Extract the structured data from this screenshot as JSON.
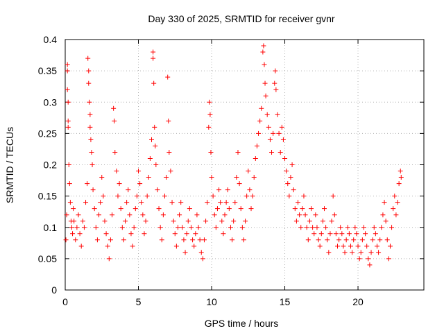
{
  "chart_data": {
    "type": "scatter",
    "title": "Day 330 of 2025, SRMTID for receiver gvnr",
    "xlabel": "GPS time / hours",
    "ylabel": "SRMTID / TECUs",
    "xlim": [
      0,
      24.5
    ],
    "ylim": [
      0,
      0.4
    ],
    "x_ticks": [
      0,
      5,
      10,
      15,
      20
    ],
    "y_ticks": [
      0,
      0.05,
      0.1,
      0.15,
      0.2,
      0.25,
      0.3,
      0.35,
      0.4
    ],
    "x_tick_labels": [
      "0",
      "5",
      "10",
      "15",
      "20"
    ],
    "y_tick_labels": [
      "0",
      "0.05",
      "0.1",
      "0.15",
      "0.2",
      "0.25",
      "0.3",
      "0.35",
      "0.4"
    ],
    "grid": true,
    "marker": "plus",
    "color": "#ff0000",
    "series": [
      {
        "name": "SRMTID",
        "points": [
          [
            0.05,
            0.08
          ],
          [
            0.1,
            0.12
          ],
          [
            0.15,
            0.36
          ],
          [
            0.15,
            0.35
          ],
          [
            0.15,
            0.32
          ],
          [
            0.2,
            0.3
          ],
          [
            0.2,
            0.27
          ],
          [
            0.2,
            0.26
          ],
          [
            0.25,
            0.2
          ],
          [
            0.3,
            0.17
          ],
          [
            0.35,
            0.14
          ],
          [
            0.4,
            0.11
          ],
          [
            0.45,
            0.1
          ],
          [
            0.5,
            0.09
          ],
          [
            0.55,
            0.13
          ],
          [
            0.6,
            0.11
          ],
          [
            0.7,
            0.08
          ],
          [
            0.8,
            0.1
          ],
          [
            0.9,
            0.12
          ],
          [
            1.0,
            0.09
          ],
          [
            1.1,
            0.07
          ],
          [
            1.2,
            0.11
          ],
          [
            1.3,
            0.1
          ],
          [
            1.4,
            0.14
          ],
          [
            1.5,
            0.17
          ],
          [
            1.55,
            0.37
          ],
          [
            1.6,
            0.35
          ],
          [
            1.6,
            0.33
          ],
          [
            1.65,
            0.3
          ],
          [
            1.7,
            0.28
          ],
          [
            1.7,
            0.26
          ],
          [
            1.75,
            0.24
          ],
          [
            1.8,
            0.22
          ],
          [
            1.85,
            0.2
          ],
          [
            1.9,
            0.16
          ],
          [
            2.0,
            0.13
          ],
          [
            2.1,
            0.1
          ],
          [
            2.2,
            0.08
          ],
          [
            2.3,
            0.12
          ],
          [
            2.4,
            0.14
          ],
          [
            2.5,
            0.18
          ],
          [
            2.6,
            0.15
          ],
          [
            2.7,
            0.11
          ],
          [
            2.8,
            0.09
          ],
          [
            2.9,
            0.07
          ],
          [
            3.0,
            0.05
          ],
          [
            3.1,
            0.08
          ],
          [
            3.2,
            0.12
          ],
          [
            3.3,
            0.29
          ],
          [
            3.35,
            0.27
          ],
          [
            3.4,
            0.22
          ],
          [
            3.5,
            0.19
          ],
          [
            3.6,
            0.15
          ],
          [
            3.7,
            0.17
          ],
          [
            3.8,
            0.13
          ],
          [
            3.9,
            0.1
          ],
          [
            4.0,
            0.08
          ],
          [
            4.1,
            0.11
          ],
          [
            4.2,
            0.14
          ],
          [
            4.3,
            0.16
          ],
          [
            4.4,
            0.12
          ],
          [
            4.5,
            0.09
          ],
          [
            4.6,
            0.07
          ],
          [
            4.7,
            0.1
          ],
          [
            4.8,
            0.13
          ],
          [
            4.9,
            0.15
          ],
          [
            5.0,
            0.19
          ],
          [
            5.1,
            0.17
          ],
          [
            5.2,
            0.14
          ],
          [
            5.3,
            0.12
          ],
          [
            5.4,
            0.09
          ],
          [
            5.5,
            0.11
          ],
          [
            5.6,
            0.15
          ],
          [
            5.7,
            0.18
          ],
          [
            5.8,
            0.21
          ],
          [
            5.9,
            0.24
          ],
          [
            6.0,
            0.38
          ],
          [
            6.0,
            0.37
          ],
          [
            6.05,
            0.33
          ],
          [
            6.1,
            0.26
          ],
          [
            6.15,
            0.23
          ],
          [
            6.2,
            0.2
          ],
          [
            6.3,
            0.16
          ],
          [
            6.4,
            0.13
          ],
          [
            6.5,
            0.1
          ],
          [
            6.6,
            0.08
          ],
          [
            6.7,
            0.12
          ],
          [
            6.8,
            0.15
          ],
          [
            6.9,
            0.18
          ],
          [
            7.0,
            0.34
          ],
          [
            7.05,
            0.27
          ],
          [
            7.1,
            0.22
          ],
          [
            7.2,
            0.19
          ],
          [
            7.3,
            0.14
          ],
          [
            7.4,
            0.11
          ],
          [
            7.5,
            0.09
          ],
          [
            7.6,
            0.07
          ],
          [
            7.7,
            0.1
          ],
          [
            7.8,
            0.12
          ],
          [
            7.9,
            0.14
          ],
          [
            8.0,
            0.1
          ],
          [
            8.1,
            0.08
          ],
          [
            8.2,
            0.06
          ],
          [
            8.3,
            0.09
          ],
          [
            8.4,
            0.11
          ],
          [
            8.5,
            0.13
          ],
          [
            8.6,
            0.1
          ],
          [
            8.7,
            0.08
          ],
          [
            8.8,
            0.07
          ],
          [
            8.9,
            0.09
          ],
          [
            9.0,
            0.12
          ],
          [
            9.1,
            0.1
          ],
          [
            9.2,
            0.08
          ],
          [
            9.3,
            0.06
          ],
          [
            9.4,
            0.05
          ],
          [
            9.5,
            0.08
          ],
          [
            9.6,
            0.11
          ],
          [
            9.7,
            0.14
          ],
          [
            9.8,
            0.26
          ],
          [
            9.85,
            0.3
          ],
          [
            9.9,
            0.28
          ],
          [
            9.95,
            0.22
          ],
          [
            10.0,
            0.18
          ],
          [
            10.1,
            0.15
          ],
          [
            10.2,
            0.12
          ],
          [
            10.3,
            0.1
          ],
          [
            10.4,
            0.13
          ],
          [
            10.5,
            0.16
          ],
          [
            10.6,
            0.14
          ],
          [
            10.7,
            0.11
          ],
          [
            10.8,
            0.09
          ],
          [
            10.9,
            0.12
          ],
          [
            11.0,
            0.14
          ],
          [
            11.1,
            0.16
          ],
          [
            11.2,
            0.13
          ],
          [
            11.3,
            0.1
          ],
          [
            11.4,
            0.08
          ],
          [
            11.5,
            0.11
          ],
          [
            11.6,
            0.14
          ],
          [
            11.7,
            0.18
          ],
          [
            11.8,
            0.22
          ],
          [
            11.9,
            0.17
          ],
          [
            12.0,
            0.13
          ],
          [
            12.1,
            0.1
          ],
          [
            12.2,
            0.08
          ],
          [
            12.3,
            0.11
          ],
          [
            12.4,
            0.15
          ],
          [
            12.5,
            0.19
          ],
          [
            12.6,
            0.16
          ],
          [
            12.7,
            0.13
          ],
          [
            12.8,
            0.15
          ],
          [
            12.9,
            0.18
          ],
          [
            13.0,
            0.21
          ],
          [
            13.1,
            0.23
          ],
          [
            13.2,
            0.25
          ],
          [
            13.3,
            0.27
          ],
          [
            13.4,
            0.29
          ],
          [
            13.5,
            0.38
          ],
          [
            13.55,
            0.39
          ],
          [
            13.6,
            0.36
          ],
          [
            13.65,
            0.33
          ],
          [
            13.7,
            0.31
          ],
          [
            13.8,
            0.28
          ],
          [
            13.9,
            0.26
          ],
          [
            14.0,
            0.24
          ],
          [
            14.1,
            0.22
          ],
          [
            14.2,
            0.25
          ],
          [
            14.3,
            0.33
          ],
          [
            14.35,
            0.35
          ],
          [
            14.4,
            0.32
          ],
          [
            14.5,
            0.28
          ],
          [
            14.6,
            0.25
          ],
          [
            14.7,
            0.22
          ],
          [
            14.8,
            0.26
          ],
          [
            14.9,
            0.24
          ],
          [
            15.0,
            0.21
          ],
          [
            15.1,
            0.19
          ],
          [
            15.2,
            0.17
          ],
          [
            15.3,
            0.15
          ],
          [
            15.4,
            0.18
          ],
          [
            15.5,
            0.2
          ],
          [
            15.6,
            0.16
          ],
          [
            15.7,
            0.13
          ],
          [
            15.8,
            0.11
          ],
          [
            15.9,
            0.14
          ],
          [
            16.0,
            0.12
          ],
          [
            16.1,
            0.1
          ],
          [
            16.2,
            0.13
          ],
          [
            16.3,
            0.15
          ],
          [
            16.4,
            0.12
          ],
          [
            16.5,
            0.1
          ],
          [
            16.6,
            0.08
          ],
          [
            16.7,
            0.11
          ],
          [
            16.8,
            0.13
          ],
          [
            16.9,
            0.1
          ],
          [
            17.0,
            0.09
          ],
          [
            17.1,
            0.12
          ],
          [
            17.2,
            0.1
          ],
          [
            17.3,
            0.08
          ],
          [
            17.4,
            0.07
          ],
          [
            17.5,
            0.09
          ],
          [
            17.6,
            0.11
          ],
          [
            17.7,
            0.13
          ],
          [
            17.8,
            0.1
          ],
          [
            17.9,
            0.08
          ],
          [
            18.0,
            0.06
          ],
          [
            18.1,
            0.09
          ],
          [
            18.2,
            0.11
          ],
          [
            18.3,
            0.15
          ],
          [
            18.4,
            0.12
          ],
          [
            18.5,
            0.09
          ],
          [
            18.6,
            0.07
          ],
          [
            18.7,
            0.08
          ],
          [
            18.8,
            0.1
          ],
          [
            18.9,
            0.09
          ],
          [
            19.0,
            0.07
          ],
          [
            19.1,
            0.06
          ],
          [
            19.2,
            0.08
          ],
          [
            19.3,
            0.1
          ],
          [
            19.4,
            0.09
          ],
          [
            19.5,
            0.07
          ],
          [
            19.6,
            0.06
          ],
          [
            19.7,
            0.08
          ],
          [
            19.8,
            0.1
          ],
          [
            19.9,
            0.09
          ],
          [
            20.0,
            0.07
          ],
          [
            20.1,
            0.05
          ],
          [
            20.2,
            0.06
          ],
          [
            20.3,
            0.08
          ],
          [
            20.4,
            0.1
          ],
          [
            20.5,
            0.09
          ],
          [
            20.6,
            0.07
          ],
          [
            20.7,
            0.05
          ],
          [
            20.8,
            0.04
          ],
          [
            20.9,
            0.06
          ],
          [
            21.0,
            0.08
          ],
          [
            21.1,
            0.1
          ],
          [
            21.2,
            0.09
          ],
          [
            21.3,
            0.07
          ],
          [
            21.4,
            0.06
          ],
          [
            21.5,
            0.08
          ],
          [
            21.6,
            0.1
          ],
          [
            21.7,
            0.12
          ],
          [
            21.8,
            0.14
          ],
          [
            21.9,
            0.11
          ],
          [
            22.0,
            0.08
          ],
          [
            22.1,
            0.05
          ],
          [
            22.2,
            0.07
          ],
          [
            22.3,
            0.1
          ],
          [
            22.4,
            0.13
          ],
          [
            22.5,
            0.15
          ],
          [
            22.6,
            0.12
          ],
          [
            22.7,
            0.14
          ],
          [
            22.8,
            0.17
          ],
          [
            22.9,
            0.19
          ],
          [
            22.95,
            0.18
          ]
        ]
      }
    ]
  }
}
